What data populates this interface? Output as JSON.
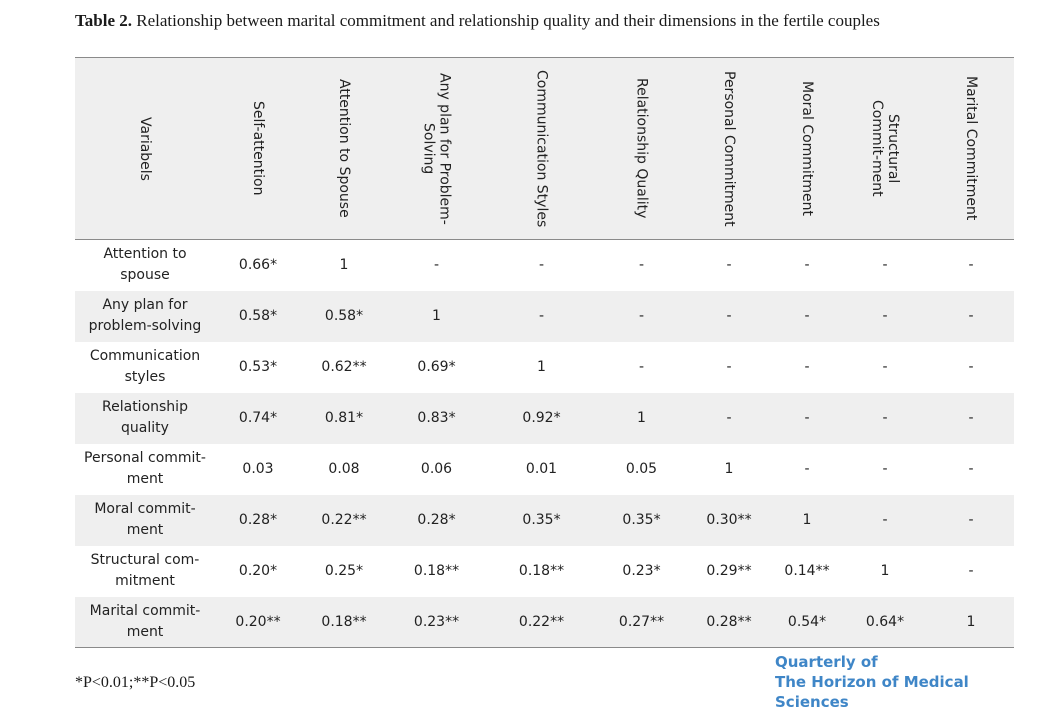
{
  "caption": {
    "label": "Table 2.",
    "text": " Relationship between marital commitment and relationship quality and their dimensions in the fertile couples"
  },
  "headers": [
    "Variabels",
    "Self-attention",
    "Attention to Spouse",
    "Any plan for Problem-Solving",
    "Communication Styles",
    "Relationship Quality",
    "Personal Commitment",
    "Moral Commitment",
    "Structural Commit-ment",
    "Marital Commitment"
  ],
  "rows": [
    {
      "label": "Attention to spouse",
      "cells": [
        "0.66*",
        "1",
        "-",
        "-",
        "-",
        "-",
        "-",
        "-",
        "-"
      ]
    },
    {
      "label": "Any plan for problem-solving",
      "cells": [
        "0.58*",
        "0.58*",
        "1",
        "-",
        "-",
        "-",
        "-",
        "-",
        "-"
      ]
    },
    {
      "label": "Communication styles",
      "cells": [
        "0.53*",
        "0.62**",
        "0.69*",
        "1",
        "-",
        "-",
        "-",
        "-",
        "-"
      ]
    },
    {
      "label": "Relationship quality",
      "cells": [
        "0.74*",
        "0.81*",
        "0.83*",
        "0.92*",
        "1",
        "-",
        "-",
        "-",
        "-"
      ]
    },
    {
      "label": "Personal commit-ment",
      "cells": [
        "0.03",
        "0.08",
        "0.06",
        "0.01",
        "0.05",
        "1",
        "-",
        "-",
        "-"
      ]
    },
    {
      "label": "Moral commit-ment",
      "cells": [
        "0.28*",
        "0.22**",
        "0.28*",
        "0.35*",
        "0.35*",
        "0.30**",
        "1",
        "-",
        "-"
      ]
    },
    {
      "label": "Structural com-mitment",
      "cells": [
        "0.20*",
        "0.25*",
        "0.18**",
        "0.18**",
        "0.23*",
        "0.29**",
        "0.14**",
        "1",
        "-"
      ]
    },
    {
      "label": "Marital commit-ment",
      "cells": [
        "0.20**",
        "0.18**",
        "0.23**",
        "0.22**",
        "0.27**",
        "0.28**",
        "0.54*",
        "0.64*",
        "1"
      ]
    }
  ],
  "note": "*P<0.01;**P<0.05",
  "logo": {
    "line1": "Quarterly of",
    "line2": "The Horizon of Medical Sciences"
  },
  "colors": {
    "header_bg": "#efefef",
    "stripe_bg": "#efefef",
    "logo": "#3f86c7"
  }
}
